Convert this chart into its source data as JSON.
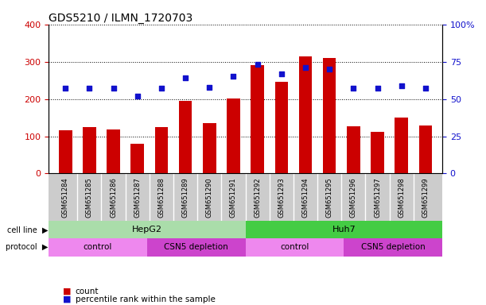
{
  "title": "GDS5210 / ILMN_1720703",
  "samples": [
    "GSM651284",
    "GSM651285",
    "GSM651286",
    "GSM651287",
    "GSM651288",
    "GSM651289",
    "GSM651290",
    "GSM651291",
    "GSM651292",
    "GSM651293",
    "GSM651294",
    "GSM651295",
    "GSM651296",
    "GSM651297",
    "GSM651298",
    "GSM651299"
  ],
  "counts": [
    115,
    125,
    118,
    80,
    125,
    195,
    135,
    202,
    290,
    245,
    315,
    310,
    127,
    112,
    150,
    128
  ],
  "percentile_ranks": [
    57,
    57,
    57,
    52,
    57,
    64,
    58,
    65,
    73,
    67,
    71,
    70,
    57,
    57,
    59,
    57
  ],
  "left_ylim": [
    0,
    400
  ],
  "right_ylim": [
    0,
    100
  ],
  "left_yticks": [
    0,
    100,
    200,
    300,
    400
  ],
  "right_yticks": [
    0,
    25,
    50,
    75,
    100
  ],
  "right_yticklabels": [
    "0",
    "25",
    "50",
    "75",
    "100%"
  ],
  "bar_color": "#cc0000",
  "dot_color": "#1111cc",
  "bar_width": 0.55,
  "hepg2_color": "#aaddaa",
  "huh7_color": "#44cc44",
  "control_color": "#ee88ee",
  "csn5_color": "#cc44cc",
  "tick_label_color_left": "#cc0000",
  "tick_label_color_right": "#1111cc",
  "bg_color": "#ffffff",
  "plot_bg_color": "#ffffff",
  "xlabel_area_color": "#cccccc",
  "cell_line_label_fontsize": 8,
  "protocol_label_fontsize": 7.5,
  "annotation_label_fontsize": 7,
  "sample_fontsize": 6,
  "title_fontsize": 10,
  "legend_red_square": "■",
  "legend_blue_square": "■",
  "proto_groups": [
    [
      0,
      4,
      "control"
    ],
    [
      4,
      8,
      "CSN5 depletion"
    ],
    [
      8,
      12,
      "control"
    ],
    [
      12,
      16,
      "CSN5 depletion"
    ]
  ],
  "cell_groups": [
    [
      0,
      8,
      "HepG2",
      "#aaddaa"
    ],
    [
      8,
      16,
      "Huh7",
      "#44cc44"
    ]
  ]
}
